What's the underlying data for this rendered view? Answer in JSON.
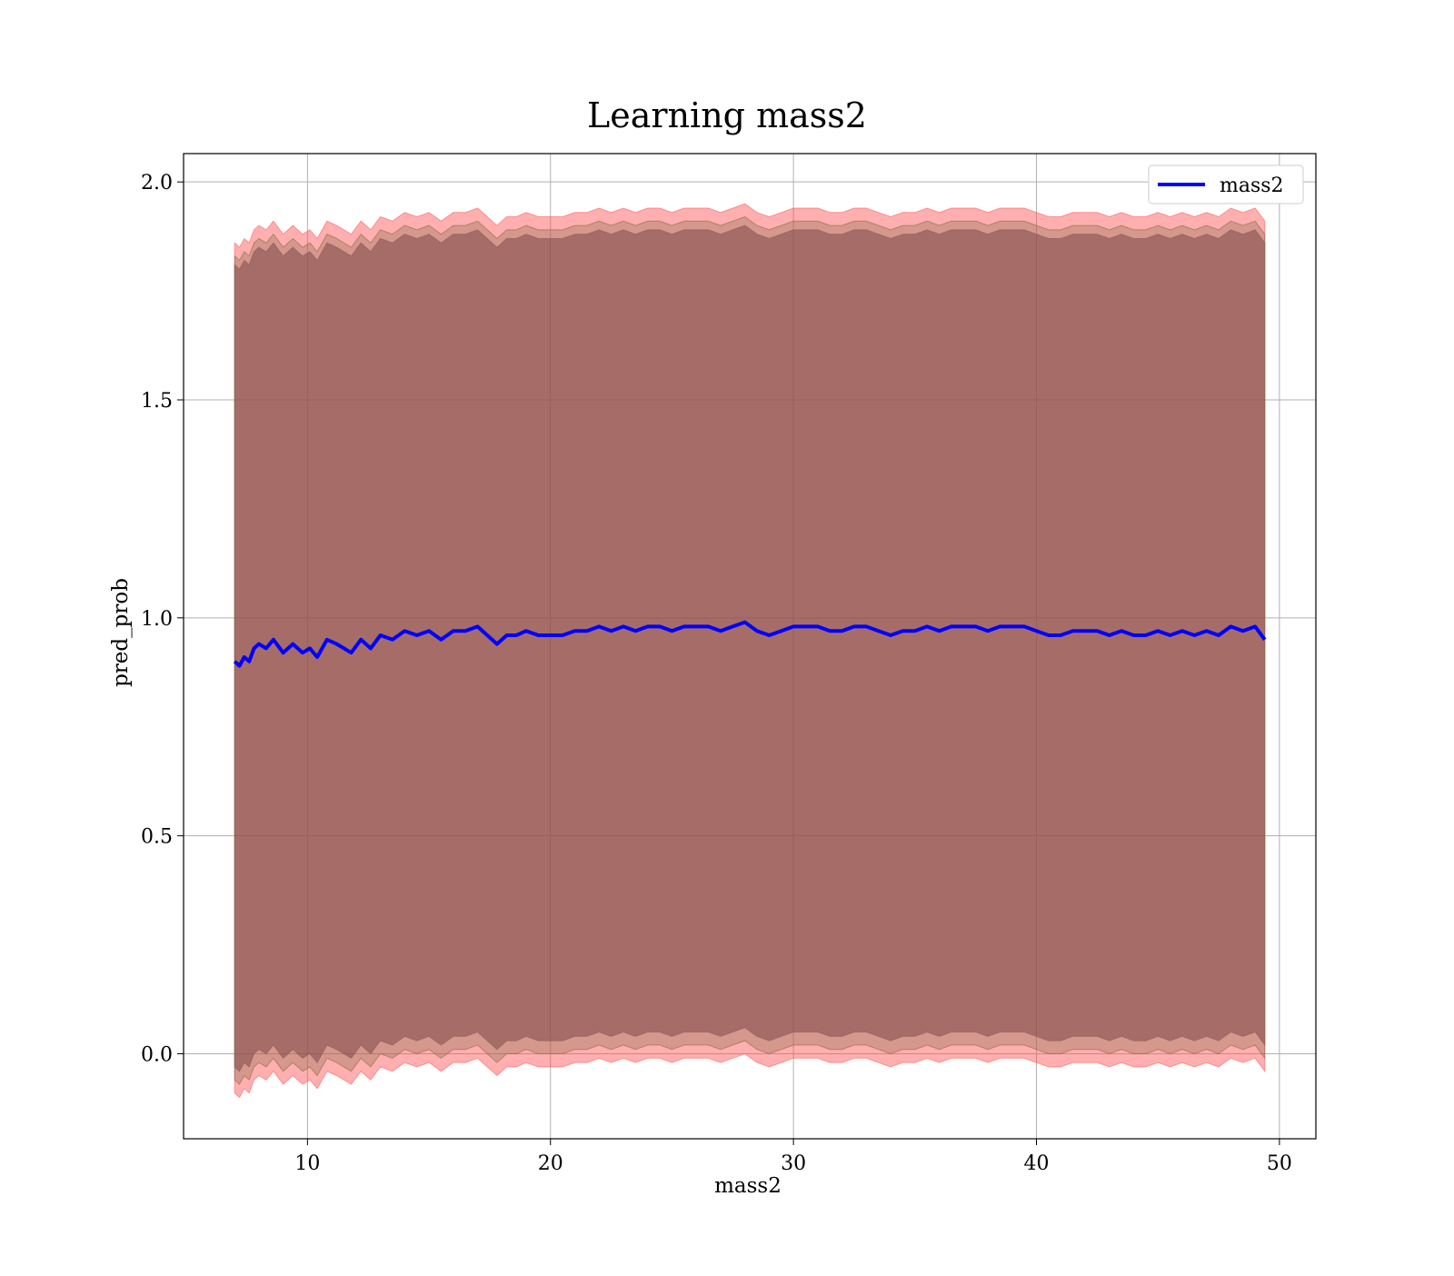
{
  "chart_data": {
    "type": "line",
    "title": "Learning mass2",
    "xlabel": "mass2",
    "ylabel": "pred_prob",
    "xlim": [
      4.9,
      51.5
    ],
    "ylim": [
      -0.195,
      2.065
    ],
    "xticks": [
      10,
      20,
      30,
      40,
      50
    ],
    "yticks": [
      0.0,
      0.5,
      1.0,
      1.5,
      2.0
    ],
    "xtick_labels": [
      "10",
      "20",
      "30",
      "40",
      "50"
    ],
    "ytick_labels": [
      "0.0",
      "0.5",
      "1.0",
      "1.5",
      "2.0"
    ],
    "grid": true,
    "legend_position": "top-right",
    "series": [
      {
        "name": "mass2",
        "color": "#0000ff",
        "x": [
          7.0,
          7.2,
          7.4,
          7.6,
          7.8,
          8.0,
          8.3,
          8.6,
          9.0,
          9.4,
          9.8,
          10.1,
          10.4,
          10.8,
          11.2,
          11.5,
          11.8,
          12.2,
          12.6,
          13.0,
          13.5,
          14.0,
          14.5,
          15.0,
          15.5,
          16.0,
          16.5,
          17.0,
          17.4,
          17.8,
          18.2,
          18.6,
          19.0,
          19.5,
          20.0,
          20.5,
          21.0,
          21.5,
          22.0,
          22.5,
          23.0,
          23.5,
          24.0,
          24.5,
          25.0,
          25.5,
          26.0,
          26.5,
          27.0,
          27.5,
          28.0,
          28.5,
          29.0,
          29.5,
          30.0,
          30.5,
          31.0,
          31.5,
          32.0,
          32.5,
          33.0,
          33.5,
          34.0,
          34.5,
          35.0,
          35.5,
          36.0,
          36.5,
          37.0,
          37.5,
          38.0,
          38.5,
          39.0,
          39.5,
          40.0,
          40.5,
          41.0,
          41.5,
          42.0,
          42.5,
          43.0,
          43.5,
          44.0,
          44.5,
          45.0,
          45.5,
          46.0,
          46.5,
          47.0,
          47.5,
          48.0,
          48.5,
          49.0,
          49.4
        ],
        "y": [
          0.9,
          0.89,
          0.91,
          0.9,
          0.93,
          0.94,
          0.93,
          0.95,
          0.92,
          0.94,
          0.92,
          0.93,
          0.91,
          0.95,
          0.94,
          0.93,
          0.92,
          0.95,
          0.93,
          0.96,
          0.95,
          0.97,
          0.96,
          0.97,
          0.95,
          0.97,
          0.97,
          0.98,
          0.96,
          0.94,
          0.96,
          0.96,
          0.97,
          0.96,
          0.96,
          0.96,
          0.97,
          0.97,
          0.98,
          0.97,
          0.98,
          0.97,
          0.98,
          0.98,
          0.97,
          0.98,
          0.98,
          0.98,
          0.97,
          0.98,
          0.99,
          0.97,
          0.96,
          0.97,
          0.98,
          0.98,
          0.98,
          0.97,
          0.97,
          0.98,
          0.98,
          0.97,
          0.96,
          0.97,
          0.97,
          0.98,
          0.97,
          0.98,
          0.98,
          0.98,
          0.97,
          0.98,
          0.98,
          0.98,
          0.97,
          0.96,
          0.96,
          0.97,
          0.97,
          0.97,
          0.96,
          0.97,
          0.96,
          0.96,
          0.97,
          0.96,
          0.97,
          0.96,
          0.97,
          0.96,
          0.98,
          0.97,
          0.98,
          0.95
        ]
      }
    ],
    "bands": [
      {
        "fill": "#ff4d4d",
        "opacity": 0.45,
        "edge": "#ff6060",
        "upper_delta": 0.96,
        "lower_delta": 0.99
      },
      {
        "fill": "#7a3a4a",
        "opacity": 0.55,
        "edge": "#8a5060",
        "upper_delta": 0.91,
        "lower_delta": 0.93
      },
      {
        "fill": "#8a6a4a",
        "opacity": 0.35,
        "edge": "#8a6a4a",
        "upper_delta": 0.93,
        "lower_delta": 0.96
      }
    ]
  }
}
